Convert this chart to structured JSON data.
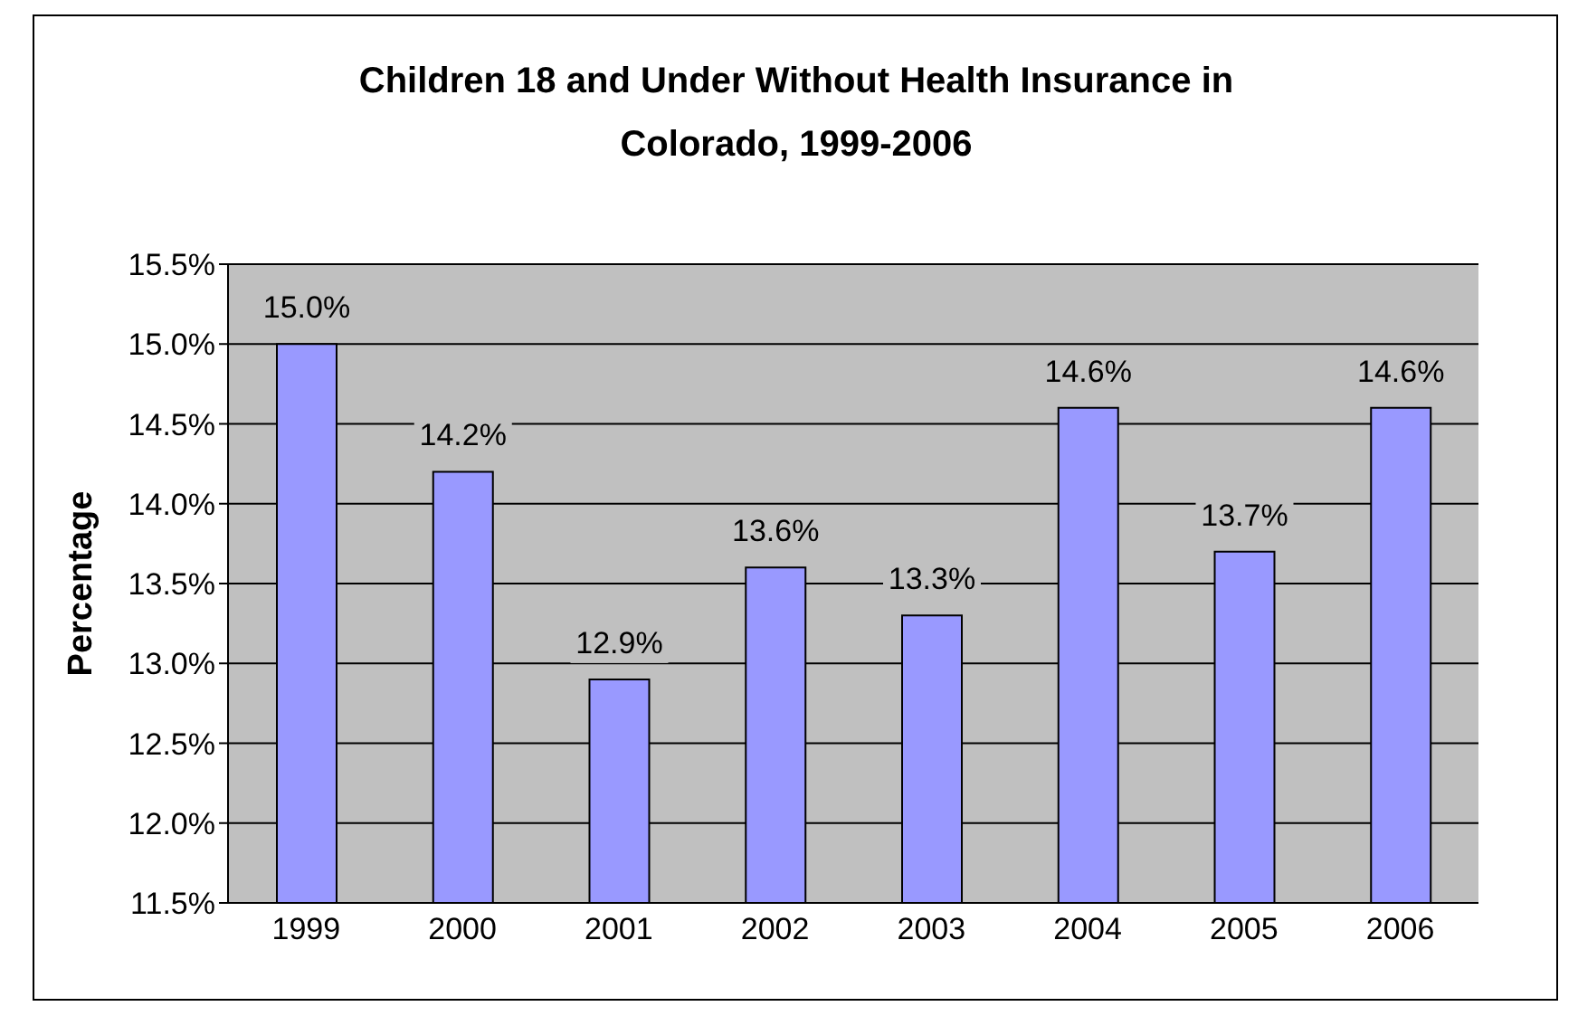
{
  "chart_data": {
    "type": "bar",
    "title": "Children 18 and Under Without Health Insurance in Colorado, 1999-2006",
    "ylabel": "Percentage",
    "categories": [
      "1999",
      "2000",
      "2001",
      "2002",
      "2003",
      "2004",
      "2005",
      "2006"
    ],
    "values": [
      15.0,
      14.2,
      12.9,
      13.6,
      13.3,
      14.6,
      13.7,
      14.6
    ],
    "value_labels": [
      "15.0%",
      "14.2%",
      "12.9%",
      "13.6%",
      "13.3%",
      "14.6%",
      "13.7%",
      "14.6%"
    ],
    "color": "#9999ff",
    "ylim": [
      11.5,
      15.5
    ],
    "yticks": [
      {
        "value": 11.5,
        "label": "11.5%"
      },
      {
        "value": 12,
        "label": "12.0%"
      },
      {
        "value": 12.5,
        "label": "12.5%"
      },
      {
        "value": 13,
        "label": "13.0%"
      },
      {
        "value": 13.5,
        "label": "13.5%"
      },
      {
        "value": 14,
        "label": "14.0%"
      },
      {
        "value": 14.5,
        "label": "14.5%"
      },
      {
        "value": 15,
        "label": "15.0%"
      },
      {
        "value": 15.5,
        "label": "15.5%"
      }
    ],
    "grid": "y",
    "legend": false
  }
}
